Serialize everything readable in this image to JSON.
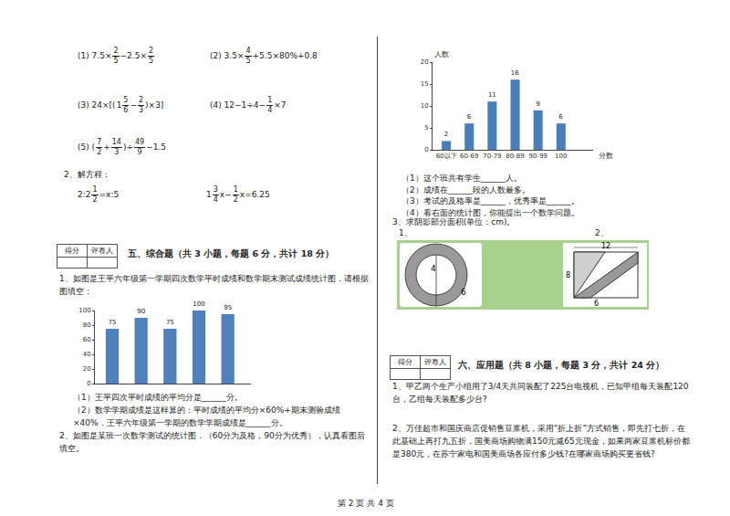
{
  "computations": [
    [
      "(1) 7.5×",
      {
        "n": "2",
        "d": "5"
      },
      "−2.5×",
      {
        "n": "2",
        "d": "5"
      }
    ],
    [
      "(2)  3.5×",
      {
        "n": "4",
        "d": "5"
      },
      "+5.5×80%+0.8"
    ],
    [
      "(3)  24×[(",
      {
        "w": "1",
        "n": "5",
        "d": "6"
      },
      "−",
      {
        "n": "2",
        "d": "3"
      },
      ")×3]"
    ],
    [
      "(4) 12−1÷4−",
      {
        "n": "1",
        "d": "4"
      },
      "×7"
    ],
    [
      "(5)  (",
      {
        "n": "7",
        "d": "2"
      },
      "+",
      {
        "n": "14",
        "d": "3"
      },
      ")÷",
      {
        "n": "49",
        "d": "9"
      },
      "−1.5"
    ]
  ],
  "equation_heading": "2、解方程：",
  "equations": [
    [
      "2:2",
      {
        "n": "1",
        "d": "2"
      },
      "=x:5"
    ],
    [
      {
        "w": "1",
        "n": "3",
        "d": "4"
      },
      "x−",
      {
        "n": "1",
        "d": "2"
      },
      "x=6.25"
    ]
  ],
  "score_box": [
    "得分",
    "评卷人"
  ],
  "section5": {
    "title": "五、综合题（共 3 小题，每题 6 分，共计 18 分）",
    "q1": "1、如图是王平六年级第一学期四次数学平时成绩和数学期末测试成绩统计图．请根据图填空：",
    "q1_sub": [
      "（1）王平四次平时成绩的平均分是______分。",
      "（2）数学学期成绩是这样算的：平时成绩的平均分×60%+期末测验成绩×40%．王平六年级第一学期的数学学期成绩是______分。"
    ],
    "q2": "2、如图是某班一次数学测试的统计图．（60分为及格，90分为优秀），认真看图后填空。"
  },
  "chart_data": [
    {
      "type": "bar",
      "categories": [
        null,
        null,
        null,
        null,
        null
      ],
      "values": [
        75,
        90,
        75,
        100,
        95
      ],
      "color": "#4f81bd",
      "ylim": [
        0,
        100
      ],
      "yticks": [
        0,
        20,
        40,
        60,
        80,
        100
      ],
      "grid": false,
      "data_labels": true,
      "tick_labels": "y"
    },
    {
      "type": "bar",
      "categories": [
        "60以下",
        "60-69",
        "70-79",
        "80-89",
        "90-99",
        "100"
      ],
      "values": [
        2,
        6,
        11,
        16,
        9,
        6
      ],
      "color": "#4a7ebb",
      "ylim": [
        0,
        20
      ],
      "yticks": [
        0,
        5,
        10,
        15,
        20
      ],
      "x_label": "分数",
      "y_label": "人数",
      "grid": false,
      "data_labels": true
    }
  ],
  "right_questions": [
    "（1）这个班共有学生______人。",
    "（2）成绩在______段的人数最多。",
    "（3）考试的及格率是______，优秀率是______。",
    "（4）看右面的统计图，你能提出一个数学问题。"
  ],
  "q3": "3、求阴影部分面积(单位：cm)。",
  "figures": {
    "markers": [
      "1、",
      "2、"
    ],
    "circle_labels": [
      "4",
      "6"
    ],
    "rect_labels": [
      "12",
      "8",
      "6"
    ]
  },
  "section6": {
    "title": "六、应用题（共 8 小题，每题 3 分，共计 24 分）",
    "problems": [
      "1、甲乙两个生产小组用了3/4天共同装配了225台电视机，已知甲组每天装配120台，乙组每天装配多少台?",
      "2、万佳超市和国庆商店促销售豆浆机，采用“折上折”方式销售，即先打七折，在此基础上再打九五折，国美商场购物满150元减65元现金，如果两家豆浆机标价都是380元，在苏宁家电和国美商场各应付多少钱?在哪家商场购买更省钱?"
    ]
  },
  "footer": "第 2 页 共 4 页"
}
